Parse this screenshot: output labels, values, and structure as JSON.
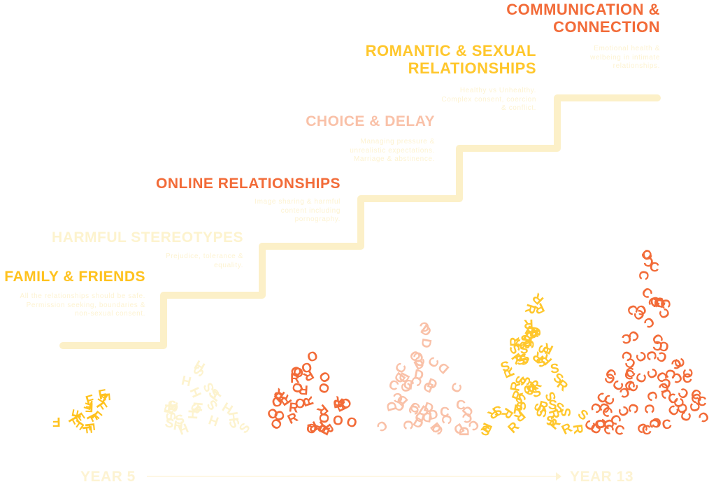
{
  "colors": {
    "stair": "#FCF0C8",
    "family": "#FFC21E",
    "stereotypes": "#FDF3CE",
    "online": "#F26B38",
    "choice": "#F9C1A8",
    "romantic": "#FFC72C",
    "communication": "#F26B38",
    "desc": "#FDF3D2",
    "axis": "#FDF3D2"
  },
  "stages": [
    {
      "id": "family",
      "title": "FAMILY & FRIENDS",
      "desc": "All the relationships should be safe. Permission seeking, boundaries & non-sexual consent.",
      "letters": [
        "F"
      ]
    },
    {
      "id": "stereotypes",
      "title": "HARMFUL STEREOTYPES",
      "desc": "Prejudice, tolerance & equality.",
      "letters": [
        "H",
        "S"
      ]
    },
    {
      "id": "online",
      "title": "ONLINE RELATIONSHIPS",
      "desc": "Image sharing & harmful content including pornography.",
      "letters": [
        "O",
        "R"
      ]
    },
    {
      "id": "choice",
      "title": "CHOICE & DELAY",
      "desc": "Managing pressure & unrealistic expectations. Marriage & abstinence.",
      "letters": [
        "C",
        "D"
      ]
    },
    {
      "id": "romantic",
      "title_line1": "ROMANTIC & SEXUAL",
      "title_line2": "RELATIONSHIPS",
      "desc": "Healthy vs Unhealthy. Complex consent, coercion & conflict.",
      "letters": [
        "R",
        "S"
      ]
    },
    {
      "id": "communication",
      "title_line1": "COMMUNICATION &",
      "title_line2": "CONNECTION",
      "desc": "Emotional health & welbeing in intimate relationships.",
      "letters": [
        "C"
      ]
    }
  ],
  "axis": {
    "start_label": "YEAR 5",
    "end_label": "YEAR 13"
  }
}
